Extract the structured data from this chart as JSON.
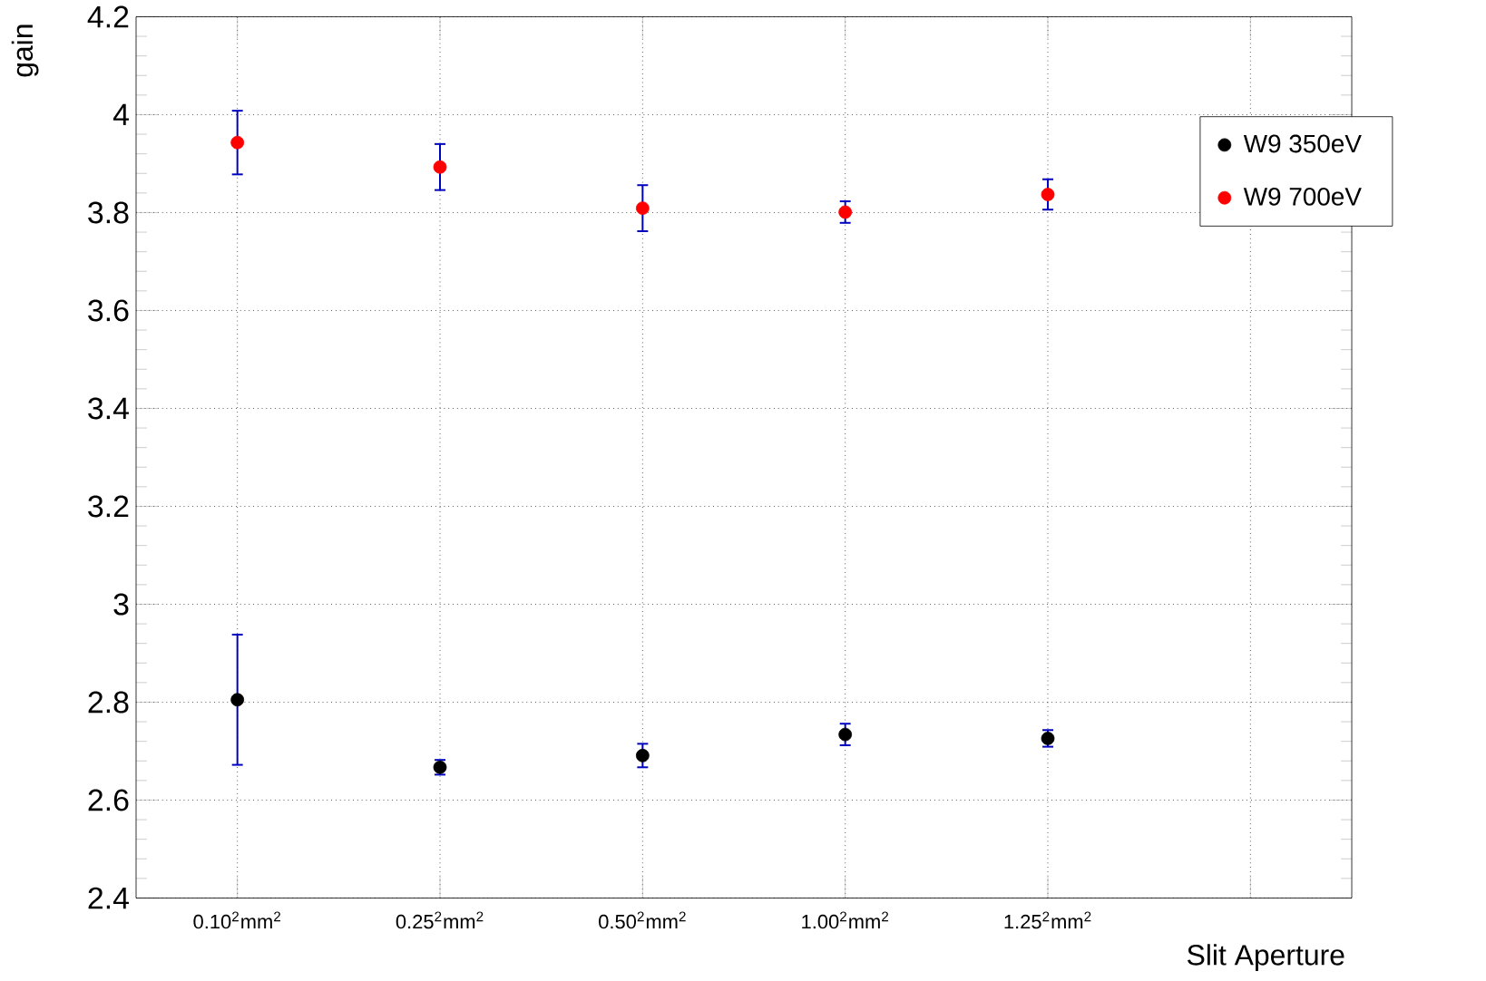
{
  "chart_data": {
    "type": "scatter",
    "xlabel": "Slit Aperture",
    "ylabel": "gain",
    "categories": [
      "0.10$^{2}$mm$^{2}$",
      "0.25$^{2}$mm$^{2}$",
      "0.50$^{2}$mm$^{2}$",
      "1.00$^{2}$mm$^{2}$",
      "1.25$^{2}$mm$^{2}$",
      null
    ],
    "series": [
      {
        "name": "W9  350eV",
        "color": "#000000",
        "values": [
          2.805,
          2.667,
          2.691,
          2.734,
          2.726,
          null
        ],
        "errors": [
          0.133,
          0.015,
          0.024,
          0.022,
          0.017,
          null
        ]
      },
      {
        "name": "W9  700eV",
        "color": "#ff0000",
        "values": [
          3.943,
          3.893,
          3.809,
          3.801,
          3.837,
          null
        ],
        "errors": [
          0.065,
          0.047,
          0.047,
          0.022,
          0.031,
          null
        ]
      }
    ],
    "ylim": [
      2.4,
      4.2
    ],
    "yticks": [
      2.4,
      2.6,
      2.8,
      3,
      3.2,
      3.4,
      3.6,
      3.8,
      4,
      4.2
    ],
    "grid": true,
    "legend": "top right",
    "marker": "circle"
  }
}
